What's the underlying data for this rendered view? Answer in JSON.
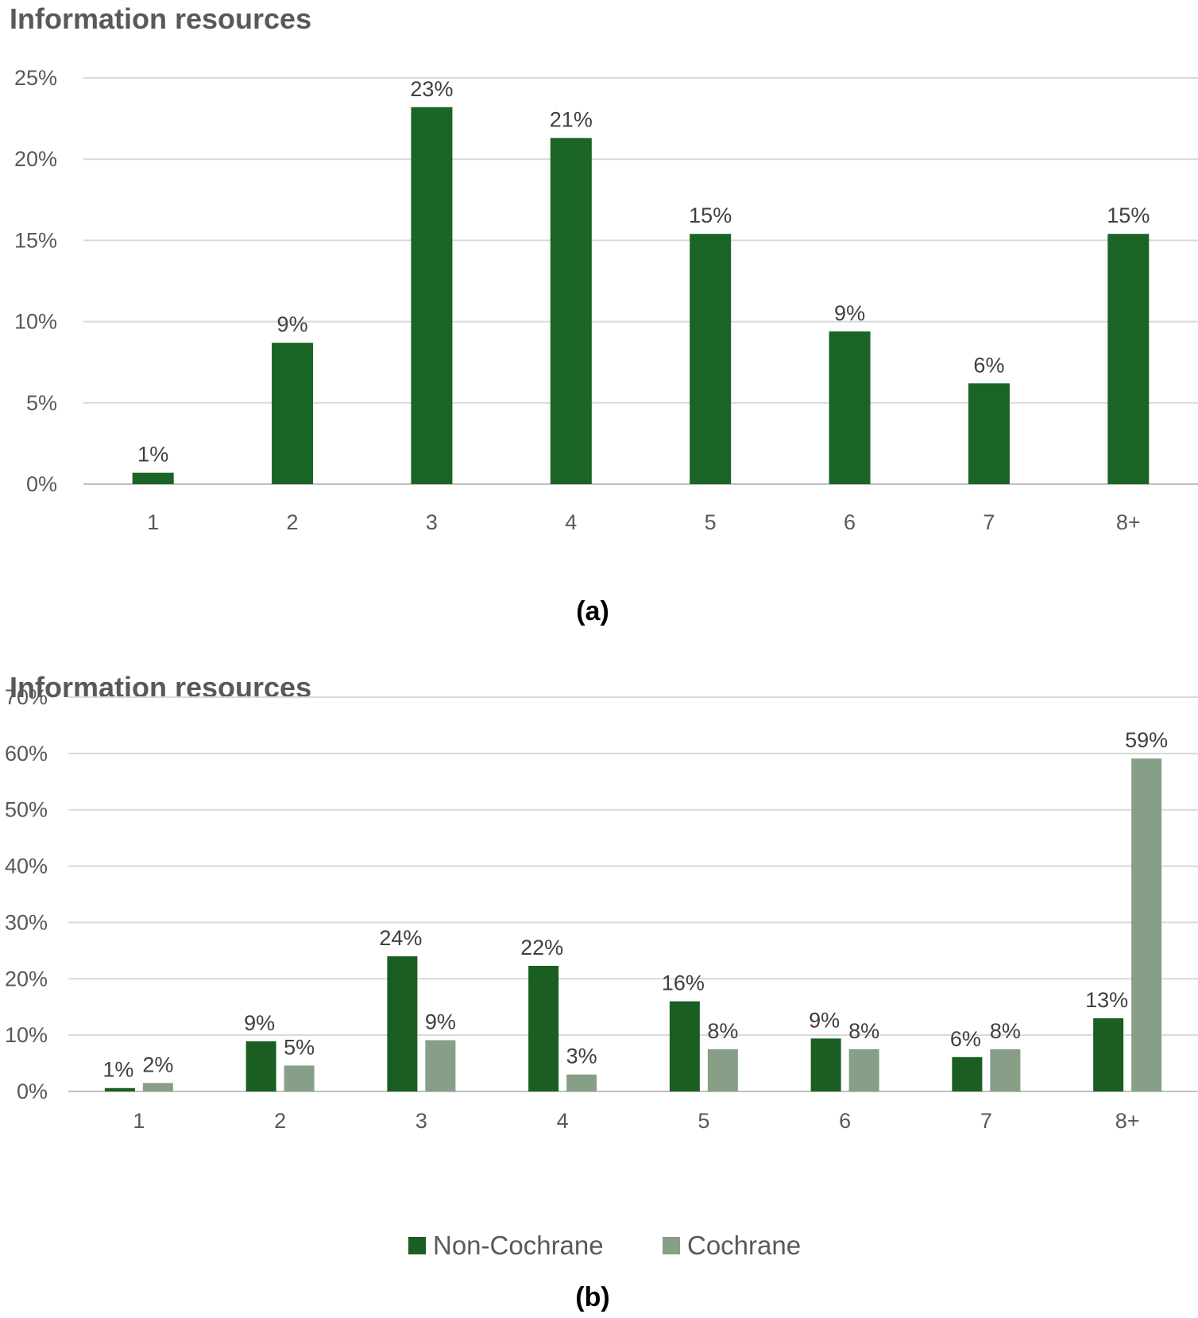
{
  "chart_data": [
    {
      "type": "bar",
      "title": "Information resources",
      "caption": "(a)",
      "categories": [
        "1",
        "2",
        "3",
        "4",
        "5",
        "6",
        "7",
        "8+"
      ],
      "ylim": [
        0,
        25
      ],
      "yticks": [
        "0%",
        "5%",
        "10%",
        "15%",
        "20%",
        "25%"
      ],
      "ytick_values": [
        0,
        5,
        10,
        15,
        20,
        25
      ],
      "grid": true,
      "series": [
        {
          "name": "",
          "color": "#1a6426",
          "values": [
            0.7,
            8.7,
            23.2,
            21.3,
            15.4,
            9.4,
            6.2,
            15.4
          ],
          "labels": [
            "1%",
            "9%",
            "23%",
            "21%",
            "15%",
            "9%",
            "6%",
            "15%"
          ]
        }
      ]
    },
    {
      "type": "bar",
      "title": "Information resources",
      "caption": "(b)",
      "categories": [
        "1",
        "2",
        "3",
        "4",
        "5",
        "6",
        "7",
        "8+"
      ],
      "ylim": [
        0,
        70
      ],
      "yticks": [
        "0%",
        "10%",
        "20%",
        "30%",
        "40%",
        "50%",
        "60%",
        "70%"
      ],
      "ytick_values": [
        0,
        10,
        20,
        30,
        40,
        50,
        60,
        70
      ],
      "grid": true,
      "legend": "bottom",
      "series": [
        {
          "name": "Non-Cochrane",
          "color": "#1a5e22",
          "values": [
            0.6,
            8.9,
            24.0,
            22.3,
            16.0,
            9.4,
            6.1,
            13.0
          ],
          "labels": [
            "1%",
            "9%",
            "24%",
            "22%",
            "16%",
            "9%",
            "6%",
            "13%"
          ]
        },
        {
          "name": "Cochrane",
          "color": "#879e87",
          "values": [
            1.5,
            4.6,
            9.1,
            3.0,
            7.5,
            7.5,
            7.5,
            59.1
          ],
          "labels": [
            "2%",
            "5%",
            "9%",
            "3%",
            "8%",
            "8%",
            "8%",
            "59%"
          ]
        }
      ]
    }
  ]
}
